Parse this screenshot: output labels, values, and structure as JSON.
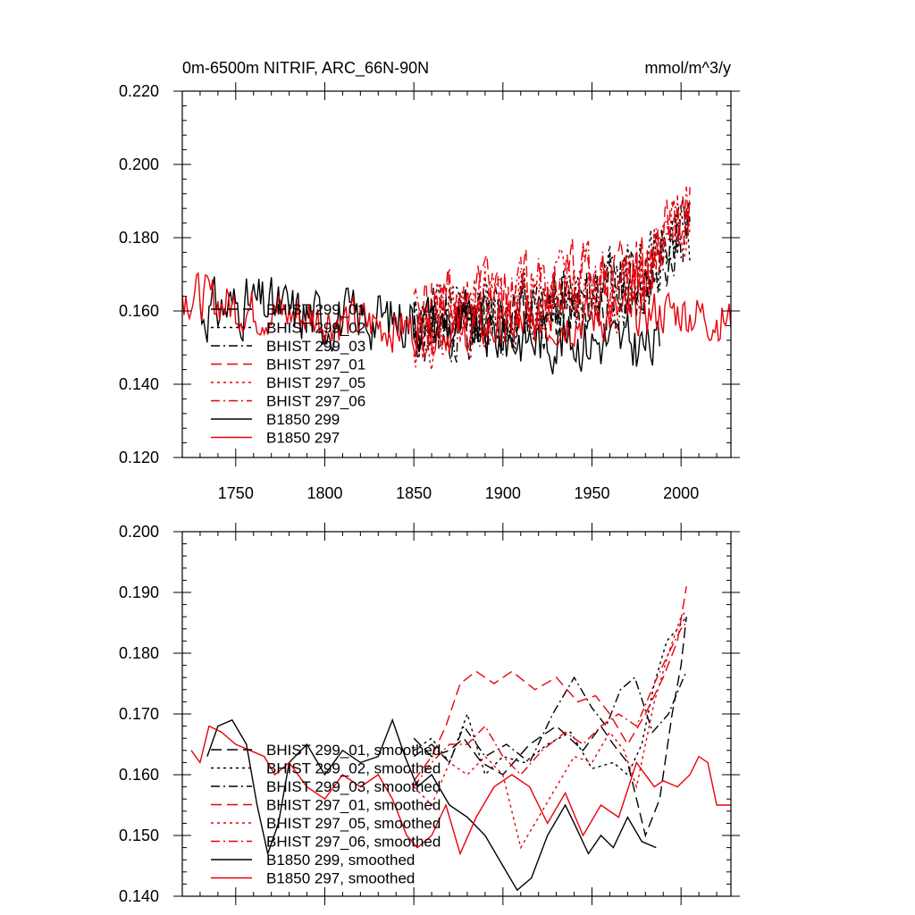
{
  "colors": {
    "black": "#000000",
    "red": "#e8000b"
  },
  "chart_data": [
    {
      "type": "line",
      "title": "0m-6500m NITRIF, ARC_66N-90N",
      "units": "mmol/m^3/y",
      "xlim": [
        1720,
        2028
      ],
      "ylim": [
        0.12,
        0.22
      ],
      "xticks": [
        1750,
        1800,
        1850,
        1900,
        1950,
        2000
      ],
      "xtick_labels": [
        "1750",
        "1800",
        "1850",
        "1900",
        "1950",
        "2000"
      ],
      "yticks": [
        0.12,
        0.14,
        0.16,
        0.18,
        0.2,
        0.22
      ],
      "ytick_labels": [
        "0.120",
        "0.140",
        "0.160",
        "0.180",
        "0.200",
        "0.220"
      ],
      "legend_position": "bottom-left",
      "series": [
        {
          "name": "BHIST 299_01",
          "color": "black",
          "dash": "long-dash",
          "x_range": [
            1850,
            2005
          ],
          "trend": [
            [
              1850,
              0.155
            ],
            [
              1900,
              0.158
            ],
            [
              1950,
              0.162
            ],
            [
              1980,
              0.17
            ],
            [
              2005,
              0.185
            ]
          ],
          "noise": 0.014,
          "seed": 11
        },
        {
          "name": "BHIST 299_02",
          "color": "black",
          "dash": "dot",
          "x_range": [
            1850,
            2005
          ],
          "trend": [
            [
              1850,
              0.156
            ],
            [
              1900,
              0.16
            ],
            [
              1950,
              0.165
            ],
            [
              1980,
              0.172
            ],
            [
              2005,
              0.183
            ]
          ],
          "noise": 0.014,
          "seed": 12
        },
        {
          "name": "BHIST 299_03",
          "color": "black",
          "dash": "dash-dot",
          "x_range": [
            1850,
            2005
          ],
          "trend": [
            [
              1850,
              0.155
            ],
            [
              1900,
              0.158
            ],
            [
              1950,
              0.163
            ],
            [
              1980,
              0.168
            ],
            [
              2005,
              0.186
            ]
          ],
          "noise": 0.014,
          "seed": 13
        },
        {
          "name": "BHIST 297_01",
          "color": "red",
          "dash": "long-dash",
          "x_range": [
            1850,
            2005
          ],
          "trend": [
            [
              1850,
              0.157
            ],
            [
              1900,
              0.165
            ],
            [
              1950,
              0.168
            ],
            [
              1980,
              0.172
            ],
            [
              2005,
              0.19
            ]
          ],
          "noise": 0.015,
          "seed": 21
        },
        {
          "name": "BHIST 297_05",
          "color": "red",
          "dash": "dot",
          "x_range": [
            1850,
            2005
          ],
          "trend": [
            [
              1850,
              0.156
            ],
            [
              1900,
              0.162
            ],
            [
              1950,
              0.166
            ],
            [
              1980,
              0.168
            ],
            [
              2005,
              0.188
            ]
          ],
          "noise": 0.015,
          "seed": 22
        },
        {
          "name": "BHIST 297_06",
          "color": "red",
          "dash": "dash-dot",
          "x_range": [
            1850,
            2005
          ],
          "trend": [
            [
              1850,
              0.156
            ],
            [
              1900,
              0.163
            ],
            [
              1950,
              0.167
            ],
            [
              1980,
              0.17
            ],
            [
              2005,
              0.192
            ]
          ],
          "noise": 0.015,
          "seed": 23
        },
        {
          "name": "B1850 299",
          "color": "black",
          "dash": "solid",
          "x_range": [
            1730,
            1988
          ],
          "trend": [
            [
              1730,
              0.16
            ],
            [
              1760,
              0.162
            ],
            [
              1800,
              0.158
            ],
            [
              1850,
              0.158
            ],
            [
              1900,
              0.153
            ],
            [
              1950,
              0.152
            ],
            [
              1988,
              0.15
            ]
          ],
          "noise": 0.011,
          "seed": 31
        },
        {
          "name": "B1850 297",
          "color": "red",
          "dash": "solid",
          "x_range": [
            1720,
            2028
          ],
          "trend": [
            [
              1720,
              0.165
            ],
            [
              1760,
              0.16
            ],
            [
              1800,
              0.158
            ],
            [
              1850,
              0.155
            ],
            [
              1900,
              0.155
            ],
            [
              1950,
              0.158
            ],
            [
              2000,
              0.16
            ],
            [
              2028,
              0.157
            ]
          ],
          "noise": 0.009,
          "seed": 32
        }
      ]
    },
    {
      "type": "line",
      "title": "",
      "xlim": [
        1720,
        2028
      ],
      "ylim": [
        0.14,
        0.2
      ],
      "xticks": [
        1750,
        1800,
        1850,
        1900,
        1950,
        2000
      ],
      "yticks": [
        0.14,
        0.15,
        0.16,
        0.17,
        0.18,
        0.19,
        0.2
      ],
      "ytick_labels": [
        "0.140",
        "0.150",
        "0.160",
        "0.170",
        "0.180",
        "0.190",
        "0.200"
      ],
      "legend_position": "bottom-left",
      "series": [
        {
          "name": "BHIST 299_01, smoothed",
          "color": "black",
          "dash": "long-dash",
          "x": [
            1850,
            1860,
            1870,
            1878,
            1888,
            1900,
            1915,
            1930,
            1945,
            1955,
            1962,
            1970,
            1980,
            1988,
            1995,
            2000,
            2003
          ],
          "y": [
            0.166,
            0.163,
            0.164,
            0.166,
            0.162,
            0.16,
            0.165,
            0.168,
            0.164,
            0.168,
            0.165,
            0.162,
            0.15,
            0.156,
            0.17,
            0.178,
            0.186
          ]
        },
        {
          "name": "BHIST 299_02, smoothed",
          "color": "black",
          "dash": "dot",
          "x": [
            1850,
            1860,
            1870,
            1880,
            1890,
            1900,
            1912,
            1925,
            1938,
            1950,
            1962,
            1970,
            1978,
            1985,
            1992,
            1998,
            2003
          ],
          "y": [
            0.164,
            0.166,
            0.162,
            0.17,
            0.16,
            0.163,
            0.162,
            0.165,
            0.167,
            0.161,
            0.162,
            0.16,
            0.165,
            0.175,
            0.182,
            0.184,
            0.186
          ]
        },
        {
          "name": "BHIST 299_03, smoothed",
          "color": "black",
          "dash": "dash-dot",
          "x": [
            1850,
            1860,
            1870,
            1878,
            1890,
            1902,
            1915,
            1928,
            1940,
            1950,
            1958,
            1966,
            1974,
            1984,
            1993,
            2000,
            2003
          ],
          "y": [
            0.163,
            0.165,
            0.162,
            0.168,
            0.163,
            0.165,
            0.162,
            0.17,
            0.176,
            0.171,
            0.168,
            0.174,
            0.176,
            0.167,
            0.17,
            0.175,
            0.177
          ]
        },
        {
          "name": "BHIST 297_01, smoothed",
          "color": "red",
          "dash": "long-dash",
          "x": [
            1850,
            1860,
            1868,
            1876,
            1885,
            1895,
            1905,
            1918,
            1930,
            1942,
            1952,
            1960,
            1970,
            1980,
            1990,
            1998,
            2003
          ],
          "y": [
            0.159,
            0.163,
            0.168,
            0.175,
            0.177,
            0.175,
            0.177,
            0.174,
            0.176,
            0.172,
            0.173,
            0.17,
            0.165,
            0.17,
            0.176,
            0.182,
            0.191
          ]
        },
        {
          "name": "BHIST 297_05, smoothed",
          "color": "red",
          "dash": "dot",
          "x": [
            1850,
            1860,
            1870,
            1880,
            1890,
            1900,
            1910,
            1918,
            1928,
            1940,
            1950,
            1960,
            1968,
            1975,
            1985,
            1993,
            2000,
            2003
          ],
          "y": [
            0.158,
            0.155,
            0.162,
            0.16,
            0.163,
            0.16,
            0.148,
            0.152,
            0.157,
            0.163,
            0.162,
            0.167,
            0.164,
            0.158,
            0.172,
            0.18,
            0.186,
            0.187
          ]
        },
        {
          "name": "BHIST 297_06, smoothed",
          "color": "red",
          "dash": "dash-dot",
          "x": [
            1850,
            1860,
            1870,
            1880,
            1890,
            1900,
            1910,
            1922,
            1935,
            1945,
            1955,
            1965,
            1975,
            1985,
            1993,
            2000,
            2003
          ],
          "y": [
            0.158,
            0.162,
            0.165,
            0.165,
            0.168,
            0.163,
            0.16,
            0.164,
            0.167,
            0.165,
            0.168,
            0.17,
            0.168,
            0.175,
            0.18,
            0.184,
            0.185
          ]
        },
        {
          "name": "B1850 299, smoothed",
          "color": "black",
          "dash": "solid",
          "x": [
            1734,
            1740,
            1748,
            1756,
            1762,
            1768,
            1774,
            1780,
            1790,
            1800,
            1810,
            1820,
            1830,
            1838,
            1845,
            1852,
            1860,
            1870,
            1880,
            1890,
            1900,
            1908,
            1916,
            1925,
            1935,
            1940,
            1948,
            1955,
            1962,
            1970,
            1978,
            1986
          ],
          "y": [
            0.163,
            0.168,
            0.169,
            0.165,
            0.155,
            0.147,
            0.152,
            0.162,
            0.165,
            0.16,
            0.164,
            0.162,
            0.163,
            0.169,
            0.163,
            0.158,
            0.16,
            0.155,
            0.153,
            0.15,
            0.145,
            0.141,
            0.143,
            0.15,
            0.155,
            0.152,
            0.147,
            0.15,
            0.148,
            0.153,
            0.149,
            0.148
          ]
        },
        {
          "name": "B1850 297, smoothed",
          "color": "red",
          "dash": "solid",
          "x": [
            1725,
            1730,
            1735,
            1742,
            1750,
            1758,
            1766,
            1772,
            1780,
            1790,
            1800,
            1810,
            1820,
            1830,
            1838,
            1846,
            1852,
            1860,
            1868,
            1876,
            1885,
            1895,
            1905,
            1915,
            1925,
            1935,
            1945,
            1955,
            1965,
            1975,
            1985,
            1990,
            1998,
            2005,
            2010,
            2015,
            2020,
            2028
          ],
          "y": [
            0.164,
            0.162,
            0.168,
            0.167,
            0.165,
            0.164,
            0.163,
            0.16,
            0.162,
            0.158,
            0.156,
            0.16,
            0.158,
            0.16,
            0.156,
            0.15,
            0.148,
            0.15,
            0.155,
            0.147,
            0.153,
            0.158,
            0.16,
            0.158,
            0.152,
            0.157,
            0.15,
            0.155,
            0.153,
            0.162,
            0.158,
            0.159,
            0.158,
            0.16,
            0.163,
            0.162,
            0.155,
            0.155
          ]
        }
      ]
    }
  ]
}
